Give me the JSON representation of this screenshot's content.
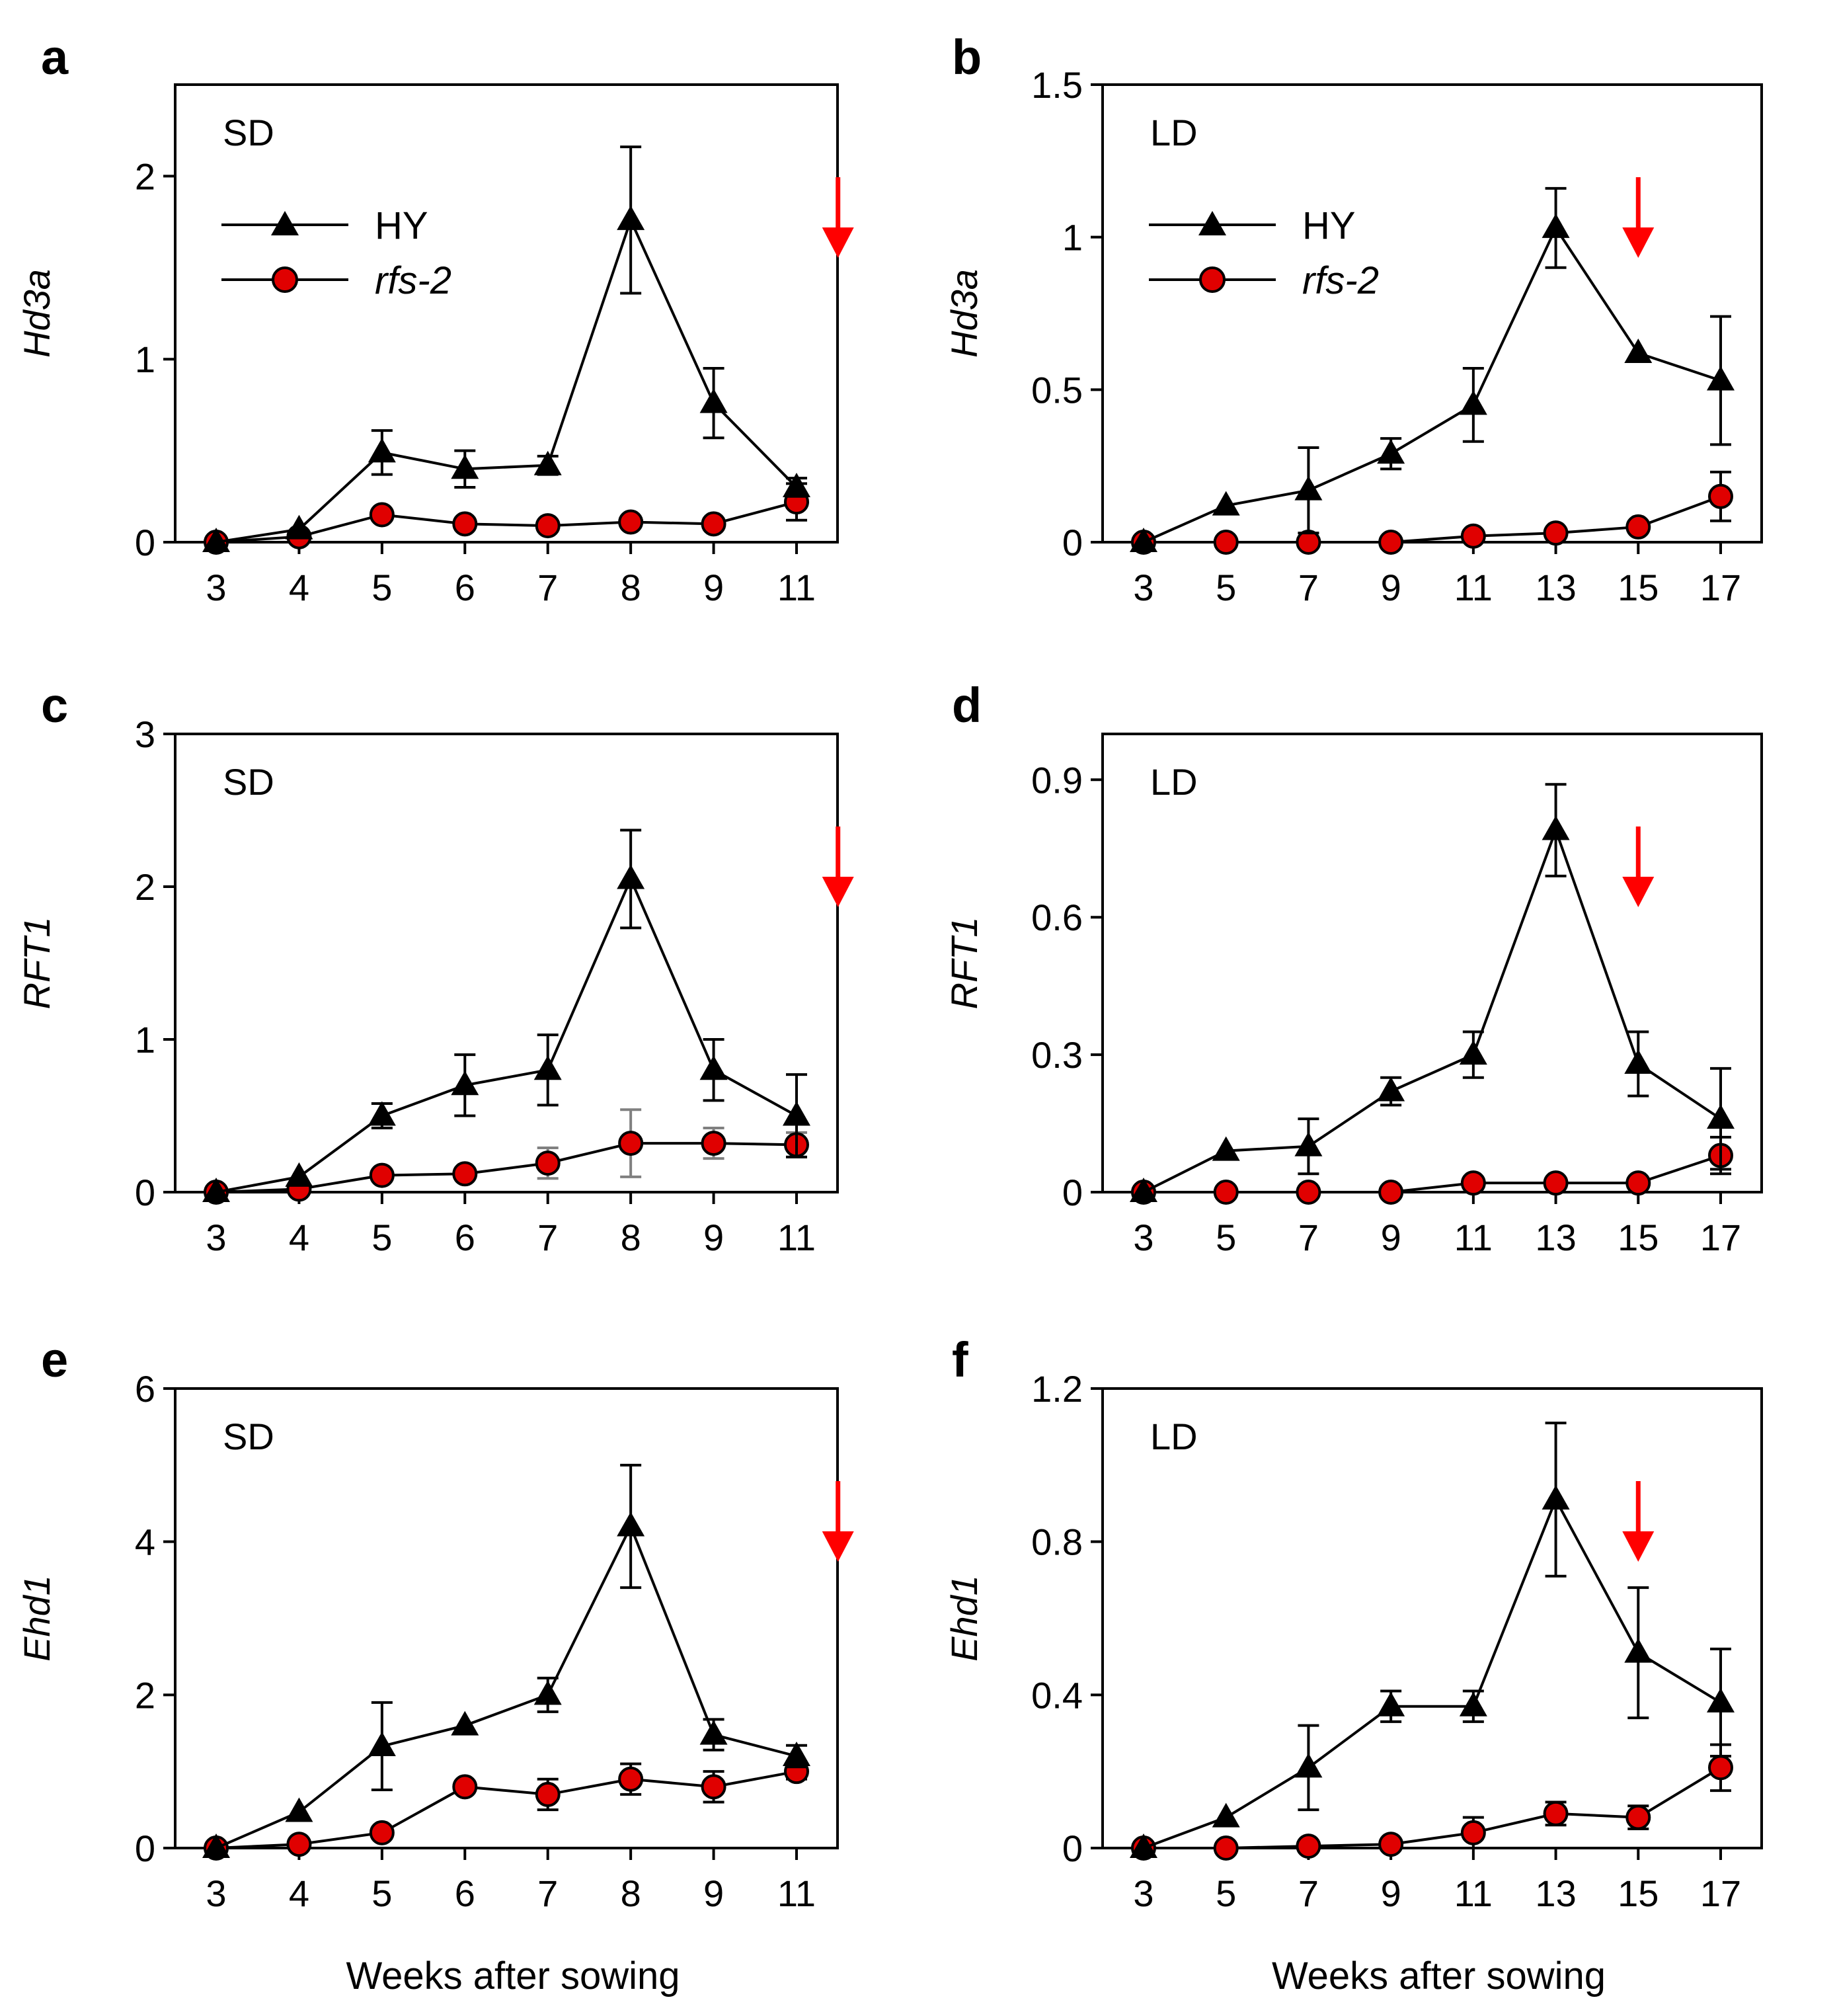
{
  "colors": {
    "hy": "#000000",
    "rfs2": "#e00000",
    "arrow": "#ff0000",
    "rfs2_errorbar_c": "#808080"
  },
  "figure": {
    "xlabel": "Weeks after sowing"
  },
  "chart_data": [
    {
      "panel": "a",
      "type": "line",
      "condition": "SD",
      "ylabel": "Hd3a",
      "categories": [
        "3",
        "4",
        "5",
        "6",
        "7",
        "8",
        "9",
        "11"
      ],
      "ylim": [
        0,
        2.5
      ],
      "yticks": [
        "0",
        "1",
        "2"
      ],
      "ytick_values": [
        0,
        1,
        2
      ],
      "arrow_at": 7.5,
      "legend": [
        "HY",
        "rfs-2"
      ],
      "series": [
        {
          "name": "HY",
          "marker": "triangle",
          "values": [
            0.0,
            0.07,
            0.49,
            0.4,
            0.42,
            1.76,
            0.76,
            0.3
          ],
          "errors": [
            0.0,
            0.0,
            0.12,
            0.1,
            0.05,
            0.4,
            0.19,
            0.05
          ]
        },
        {
          "name": "rfs-2",
          "marker": "circle",
          "values": [
            0.0,
            0.03,
            0.15,
            0.1,
            0.09,
            0.11,
            0.1,
            0.22
          ],
          "errors": [
            0.0,
            0.0,
            0.0,
            0.0,
            0.0,
            0.0,
            0.0,
            0.1
          ]
        }
      ]
    },
    {
      "panel": "b",
      "type": "line",
      "condition": "LD",
      "ylabel": "Hd3a",
      "categories": [
        "3",
        "5",
        "7",
        "9",
        "11",
        "13",
        "15",
        "17"
      ],
      "ylim": [
        0,
        1.5
      ],
      "yticks": [
        "0",
        "0.5",
        "1",
        "1.5"
      ],
      "ytick_values": [
        0,
        0.5,
        1,
        1.5
      ],
      "arrow_at": 6,
      "legend": [
        "HY",
        "rfs-2"
      ],
      "series": [
        {
          "name": "HY",
          "marker": "triangle",
          "values": [
            0.0,
            0.12,
            0.17,
            0.29,
            0.45,
            1.03,
            0.62,
            0.53
          ],
          "errors": [
            0.0,
            0.0,
            0.14,
            0.05,
            0.12,
            0.13,
            0.0,
            0.21
          ]
        },
        {
          "name": "rfs-2",
          "marker": "circle",
          "values": [
            0.0,
            0.0,
            0.0,
            0.0,
            0.02,
            0.03,
            0.05,
            0.15
          ],
          "errors": [
            0.0,
            0.0,
            0.0,
            0.0,
            0.0,
            0.0,
            0.0,
            0.08
          ]
        }
      ]
    },
    {
      "panel": "c",
      "type": "line",
      "condition": "SD",
      "ylabel": "RFT1",
      "categories": [
        "3",
        "4",
        "5",
        "6",
        "7",
        "8",
        "9",
        "11"
      ],
      "ylim": [
        0,
        3
      ],
      "yticks": [
        "0",
        "1",
        "2",
        "3"
      ],
      "ytick_values": [
        0,
        1,
        2,
        3
      ],
      "arrow_at": 7.5,
      "series": [
        {
          "name": "HY",
          "marker": "triangle",
          "values": [
            0.0,
            0.1,
            0.5,
            0.7,
            0.8,
            2.05,
            0.8,
            0.5
          ],
          "errors": [
            0.0,
            0.0,
            0.08,
            0.2,
            0.23,
            0.32,
            0.2,
            0.27
          ]
        },
        {
          "name": "rfs-2",
          "marker": "circle",
          "values": [
            0.0,
            0.02,
            0.11,
            0.12,
            0.19,
            0.32,
            0.32,
            0.31
          ],
          "errors": [
            0.0,
            0.0,
            0.0,
            0.0,
            0.1,
            0.22,
            0.1,
            0.08
          ]
        }
      ]
    },
    {
      "panel": "d",
      "type": "line",
      "condition": "LD",
      "ylabel": "RFT1",
      "categories": [
        "3",
        "5",
        "7",
        "9",
        "11",
        "13",
        "15",
        "17"
      ],
      "ylim": [
        0,
        1.0
      ],
      "yticks": [
        "0",
        "0.3",
        "0.6",
        "0.9"
      ],
      "ytick_values": [
        0,
        0.3,
        0.6,
        0.9
      ],
      "arrow_at": 6,
      "series": [
        {
          "name": "HY",
          "marker": "triangle",
          "values": [
            0.0,
            0.09,
            0.1,
            0.22,
            0.3,
            0.79,
            0.28,
            0.16
          ],
          "errors": [
            0.0,
            0.0,
            0.06,
            0.03,
            0.05,
            0.1,
            0.07,
            0.11
          ]
        },
        {
          "name": "rfs-2",
          "marker": "circle",
          "values": [
            0.0,
            0.0,
            0.0,
            0.0,
            0.02,
            0.02,
            0.02,
            0.08
          ],
          "errors": [
            0.0,
            0.0,
            0.0,
            0.0,
            0.0,
            0.0,
            0.0,
            0.04
          ]
        }
      ]
    },
    {
      "panel": "e",
      "type": "line",
      "condition": "SD",
      "ylabel": "Ehd1",
      "categories": [
        "3",
        "4",
        "5",
        "6",
        "7",
        "8",
        "9",
        "11"
      ],
      "ylim": [
        0,
        6
      ],
      "yticks": [
        "0",
        "2",
        "4",
        "6"
      ],
      "ytick_values": [
        0,
        2,
        4,
        6
      ],
      "arrow_at": 7.5,
      "series": [
        {
          "name": "HY",
          "marker": "triangle",
          "values": [
            0.0,
            0.47,
            1.33,
            1.6,
            2.0,
            4.2,
            1.48,
            1.2
          ],
          "errors": [
            0.0,
            0.0,
            0.57,
            0.0,
            0.22,
            0.8,
            0.2,
            0.14
          ]
        },
        {
          "name": "rfs-2",
          "marker": "circle",
          "values": [
            0.0,
            0.05,
            0.2,
            0.8,
            0.7,
            0.9,
            0.8,
            1.0
          ],
          "errors": [
            0.0,
            0.0,
            0.0,
            0.0,
            0.2,
            0.2,
            0.2,
            0.1
          ]
        }
      ]
    },
    {
      "panel": "f",
      "type": "line",
      "condition": "LD",
      "ylabel": "Ehd1",
      "categories": [
        "3",
        "5",
        "7",
        "9",
        "11",
        "13",
        "15",
        "17"
      ],
      "ylim": [
        0,
        1.2
      ],
      "yticks": [
        "0",
        "0.4",
        "0.8",
        "1.2"
      ],
      "ytick_values": [
        0,
        0.4,
        0.8,
        1.2
      ],
      "arrow_at": 6,
      "series": [
        {
          "name": "HY",
          "marker": "triangle",
          "values": [
            0.0,
            0.08,
            0.21,
            0.37,
            0.37,
            0.91,
            0.51,
            0.38
          ],
          "errors": [
            0.0,
            0.0,
            0.11,
            0.04,
            0.04,
            0.2,
            0.17,
            0.14
          ]
        },
        {
          "name": "rfs-2",
          "marker": "circle",
          "values": [
            0.0,
            0.0,
            0.005,
            0.01,
            0.04,
            0.09,
            0.08,
            0.21
          ],
          "errors": [
            0.0,
            0.0,
            0.0,
            0.0,
            0.04,
            0.03,
            0.03,
            0.06
          ]
        }
      ]
    }
  ]
}
